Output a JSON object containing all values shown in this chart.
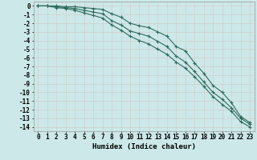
{
  "xlabel": "Humidex (Indice chaleur)",
  "bg_color": "#cce8e8",
  "grid_color": "#ffffff",
  "line_color": "#2e6b5e",
  "xlim": [
    -0.5,
    23.5
  ],
  "ylim": [
    -14.5,
    0.5
  ],
  "xticks": [
    0,
    1,
    2,
    3,
    4,
    5,
    6,
    7,
    8,
    9,
    10,
    11,
    12,
    13,
    14,
    15,
    16,
    17,
    18,
    19,
    20,
    21,
    22,
    23
  ],
  "yticks": [
    0,
    -1,
    -2,
    -3,
    -4,
    -5,
    -6,
    -7,
    -8,
    -9,
    -10,
    -11,
    -12,
    -13,
    -14
  ],
  "line1_x": [
    0,
    1,
    2,
    3,
    4,
    5,
    6,
    7,
    8,
    9,
    10,
    11,
    12,
    13,
    14,
    15,
    16,
    17,
    18,
    19,
    20,
    21,
    22,
    23
  ],
  "line1_y": [
    0,
    0,
    0,
    -0.1,
    -0.1,
    -0.2,
    -0.3,
    -0.4,
    -0.9,
    -1.3,
    -2.0,
    -2.3,
    -2.5,
    -3.0,
    -3.5,
    -4.7,
    -5.2,
    -6.6,
    -7.8,
    -9.2,
    -10.0,
    -11.2,
    -12.8,
    -13.5
  ],
  "line2_x": [
    0,
    1,
    2,
    3,
    4,
    5,
    6,
    7,
    8,
    9,
    10,
    11,
    12,
    13,
    14,
    15,
    16,
    17,
    18,
    19,
    20,
    21,
    22,
    23
  ],
  "line2_y": [
    0,
    0,
    -0.1,
    -0.2,
    -0.3,
    -0.5,
    -0.7,
    -0.9,
    -1.7,
    -2.2,
    -2.9,
    -3.2,
    -3.5,
    -4.1,
    -4.7,
    -5.8,
    -6.5,
    -7.6,
    -8.8,
    -10.0,
    -10.8,
    -11.8,
    -13.0,
    -13.7
  ],
  "line3_x": [
    0,
    1,
    2,
    3,
    4,
    5,
    6,
    7,
    8,
    9,
    10,
    11,
    12,
    13,
    14,
    15,
    16,
    17,
    18,
    19,
    20,
    21,
    22,
    23
  ],
  "line3_y": [
    0,
    0,
    -0.2,
    -0.3,
    -0.5,
    -0.8,
    -1.1,
    -1.4,
    -2.2,
    -2.8,
    -3.5,
    -4.0,
    -4.4,
    -5.0,
    -5.6,
    -6.5,
    -7.2,
    -8.2,
    -9.3,
    -10.5,
    -11.4,
    -12.2,
    -13.4,
    -14.0
  ],
  "tick_fontsize": 5.5,
  "xlabel_fontsize": 6.5
}
